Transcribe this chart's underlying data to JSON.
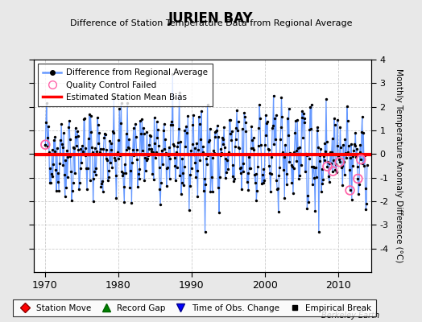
{
  "title": "JURIEN BAY",
  "subtitle": "Difference of Station Temperature Data from Regional Average",
  "ylabel": "Monthly Temperature Anomaly Difference (°C)",
  "xlabel_ticks": [
    1970,
    1980,
    1990,
    2000,
    2010
  ],
  "ylim": [
    -5,
    4
  ],
  "yticks": [
    -4,
    -3,
    -2,
    -1,
    0,
    1,
    2,
    3,
    4
  ],
  "xlim": [
    1968.5,
    2014.5
  ],
  "mean_bias": -0.02,
  "background_color": "#e8e8e8",
  "plot_bg_color": "#ffffff",
  "line_color": "#6699ff",
  "dot_color": "#000000",
  "bias_color": "#ff0000",
  "qc_color": "#ff66aa",
  "seed": 42,
  "years_start": 1970,
  "years_end": 2013
}
